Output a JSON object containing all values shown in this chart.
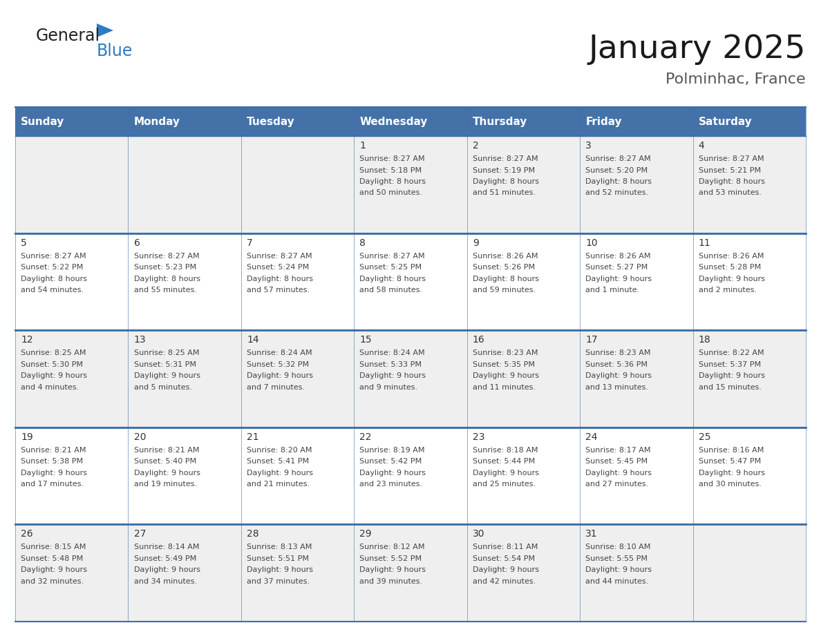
{
  "title": "January 2025",
  "subtitle": "Polminhac, France",
  "header_bg": "#4472A8",
  "header_text_color": "#FFFFFF",
  "day_headers": [
    "Sunday",
    "Monday",
    "Tuesday",
    "Wednesday",
    "Thursday",
    "Friday",
    "Saturday"
  ],
  "cell_bg_light": "#EFEFEF",
  "cell_bg_white": "#FFFFFF",
  "cell_border_color": "#3A6EA8",
  "day_number_color": "#333333",
  "text_color": "#444444",
  "logo_general_color": "#222222",
  "logo_blue_color": "#2B7CC4",
  "weeks": [
    [
      {
        "day": "",
        "sunrise": "",
        "sunset": "",
        "daylight": ""
      },
      {
        "day": "",
        "sunrise": "",
        "sunset": "",
        "daylight": ""
      },
      {
        "day": "",
        "sunrise": "",
        "sunset": "",
        "daylight": ""
      },
      {
        "day": "1",
        "sunrise": "Sunrise: 8:27 AM",
        "sunset": "Sunset: 5:18 PM",
        "daylight": "Daylight: 8 hours\nand 50 minutes."
      },
      {
        "day": "2",
        "sunrise": "Sunrise: 8:27 AM",
        "sunset": "Sunset: 5:19 PM",
        "daylight": "Daylight: 8 hours\nand 51 minutes."
      },
      {
        "day": "3",
        "sunrise": "Sunrise: 8:27 AM",
        "sunset": "Sunset: 5:20 PM",
        "daylight": "Daylight: 8 hours\nand 52 minutes."
      },
      {
        "day": "4",
        "sunrise": "Sunrise: 8:27 AM",
        "sunset": "Sunset: 5:21 PM",
        "daylight": "Daylight: 8 hours\nand 53 minutes."
      }
    ],
    [
      {
        "day": "5",
        "sunrise": "Sunrise: 8:27 AM",
        "sunset": "Sunset: 5:22 PM",
        "daylight": "Daylight: 8 hours\nand 54 minutes."
      },
      {
        "day": "6",
        "sunrise": "Sunrise: 8:27 AM",
        "sunset": "Sunset: 5:23 PM",
        "daylight": "Daylight: 8 hours\nand 55 minutes."
      },
      {
        "day": "7",
        "sunrise": "Sunrise: 8:27 AM",
        "sunset": "Sunset: 5:24 PM",
        "daylight": "Daylight: 8 hours\nand 57 minutes."
      },
      {
        "day": "8",
        "sunrise": "Sunrise: 8:27 AM",
        "sunset": "Sunset: 5:25 PM",
        "daylight": "Daylight: 8 hours\nand 58 minutes."
      },
      {
        "day": "9",
        "sunrise": "Sunrise: 8:26 AM",
        "sunset": "Sunset: 5:26 PM",
        "daylight": "Daylight: 8 hours\nand 59 minutes."
      },
      {
        "day": "10",
        "sunrise": "Sunrise: 8:26 AM",
        "sunset": "Sunset: 5:27 PM",
        "daylight": "Daylight: 9 hours\nand 1 minute."
      },
      {
        "day": "11",
        "sunrise": "Sunrise: 8:26 AM",
        "sunset": "Sunset: 5:28 PM",
        "daylight": "Daylight: 9 hours\nand 2 minutes."
      }
    ],
    [
      {
        "day": "12",
        "sunrise": "Sunrise: 8:25 AM",
        "sunset": "Sunset: 5:30 PM",
        "daylight": "Daylight: 9 hours\nand 4 minutes."
      },
      {
        "day": "13",
        "sunrise": "Sunrise: 8:25 AM",
        "sunset": "Sunset: 5:31 PM",
        "daylight": "Daylight: 9 hours\nand 5 minutes."
      },
      {
        "day": "14",
        "sunrise": "Sunrise: 8:24 AM",
        "sunset": "Sunset: 5:32 PM",
        "daylight": "Daylight: 9 hours\nand 7 minutes."
      },
      {
        "day": "15",
        "sunrise": "Sunrise: 8:24 AM",
        "sunset": "Sunset: 5:33 PM",
        "daylight": "Daylight: 9 hours\nand 9 minutes."
      },
      {
        "day": "16",
        "sunrise": "Sunrise: 8:23 AM",
        "sunset": "Sunset: 5:35 PM",
        "daylight": "Daylight: 9 hours\nand 11 minutes."
      },
      {
        "day": "17",
        "sunrise": "Sunrise: 8:23 AM",
        "sunset": "Sunset: 5:36 PM",
        "daylight": "Daylight: 9 hours\nand 13 minutes."
      },
      {
        "day": "18",
        "sunrise": "Sunrise: 8:22 AM",
        "sunset": "Sunset: 5:37 PM",
        "daylight": "Daylight: 9 hours\nand 15 minutes."
      }
    ],
    [
      {
        "day": "19",
        "sunrise": "Sunrise: 8:21 AM",
        "sunset": "Sunset: 5:38 PM",
        "daylight": "Daylight: 9 hours\nand 17 minutes."
      },
      {
        "day": "20",
        "sunrise": "Sunrise: 8:21 AM",
        "sunset": "Sunset: 5:40 PM",
        "daylight": "Daylight: 9 hours\nand 19 minutes."
      },
      {
        "day": "21",
        "sunrise": "Sunrise: 8:20 AM",
        "sunset": "Sunset: 5:41 PM",
        "daylight": "Daylight: 9 hours\nand 21 minutes."
      },
      {
        "day": "22",
        "sunrise": "Sunrise: 8:19 AM",
        "sunset": "Sunset: 5:42 PM",
        "daylight": "Daylight: 9 hours\nand 23 minutes."
      },
      {
        "day": "23",
        "sunrise": "Sunrise: 8:18 AM",
        "sunset": "Sunset: 5:44 PM",
        "daylight": "Daylight: 9 hours\nand 25 minutes."
      },
      {
        "day": "24",
        "sunrise": "Sunrise: 8:17 AM",
        "sunset": "Sunset: 5:45 PM",
        "daylight": "Daylight: 9 hours\nand 27 minutes."
      },
      {
        "day": "25",
        "sunrise": "Sunrise: 8:16 AM",
        "sunset": "Sunset: 5:47 PM",
        "daylight": "Daylight: 9 hours\nand 30 minutes."
      }
    ],
    [
      {
        "day": "26",
        "sunrise": "Sunrise: 8:15 AM",
        "sunset": "Sunset: 5:48 PM",
        "daylight": "Daylight: 9 hours\nand 32 minutes."
      },
      {
        "day": "27",
        "sunrise": "Sunrise: 8:14 AM",
        "sunset": "Sunset: 5:49 PM",
        "daylight": "Daylight: 9 hours\nand 34 minutes."
      },
      {
        "day": "28",
        "sunrise": "Sunrise: 8:13 AM",
        "sunset": "Sunset: 5:51 PM",
        "daylight": "Daylight: 9 hours\nand 37 minutes."
      },
      {
        "day": "29",
        "sunrise": "Sunrise: 8:12 AM",
        "sunset": "Sunset: 5:52 PM",
        "daylight": "Daylight: 9 hours\nand 39 minutes."
      },
      {
        "day": "30",
        "sunrise": "Sunrise: 8:11 AM",
        "sunset": "Sunset: 5:54 PM",
        "daylight": "Daylight: 9 hours\nand 42 minutes."
      },
      {
        "day": "31",
        "sunrise": "Sunrise: 8:10 AM",
        "sunset": "Sunset: 5:55 PM",
        "daylight": "Daylight: 9 hours\nand 44 minutes."
      },
      {
        "day": "",
        "sunrise": "",
        "sunset": "",
        "daylight": ""
      }
    ]
  ]
}
